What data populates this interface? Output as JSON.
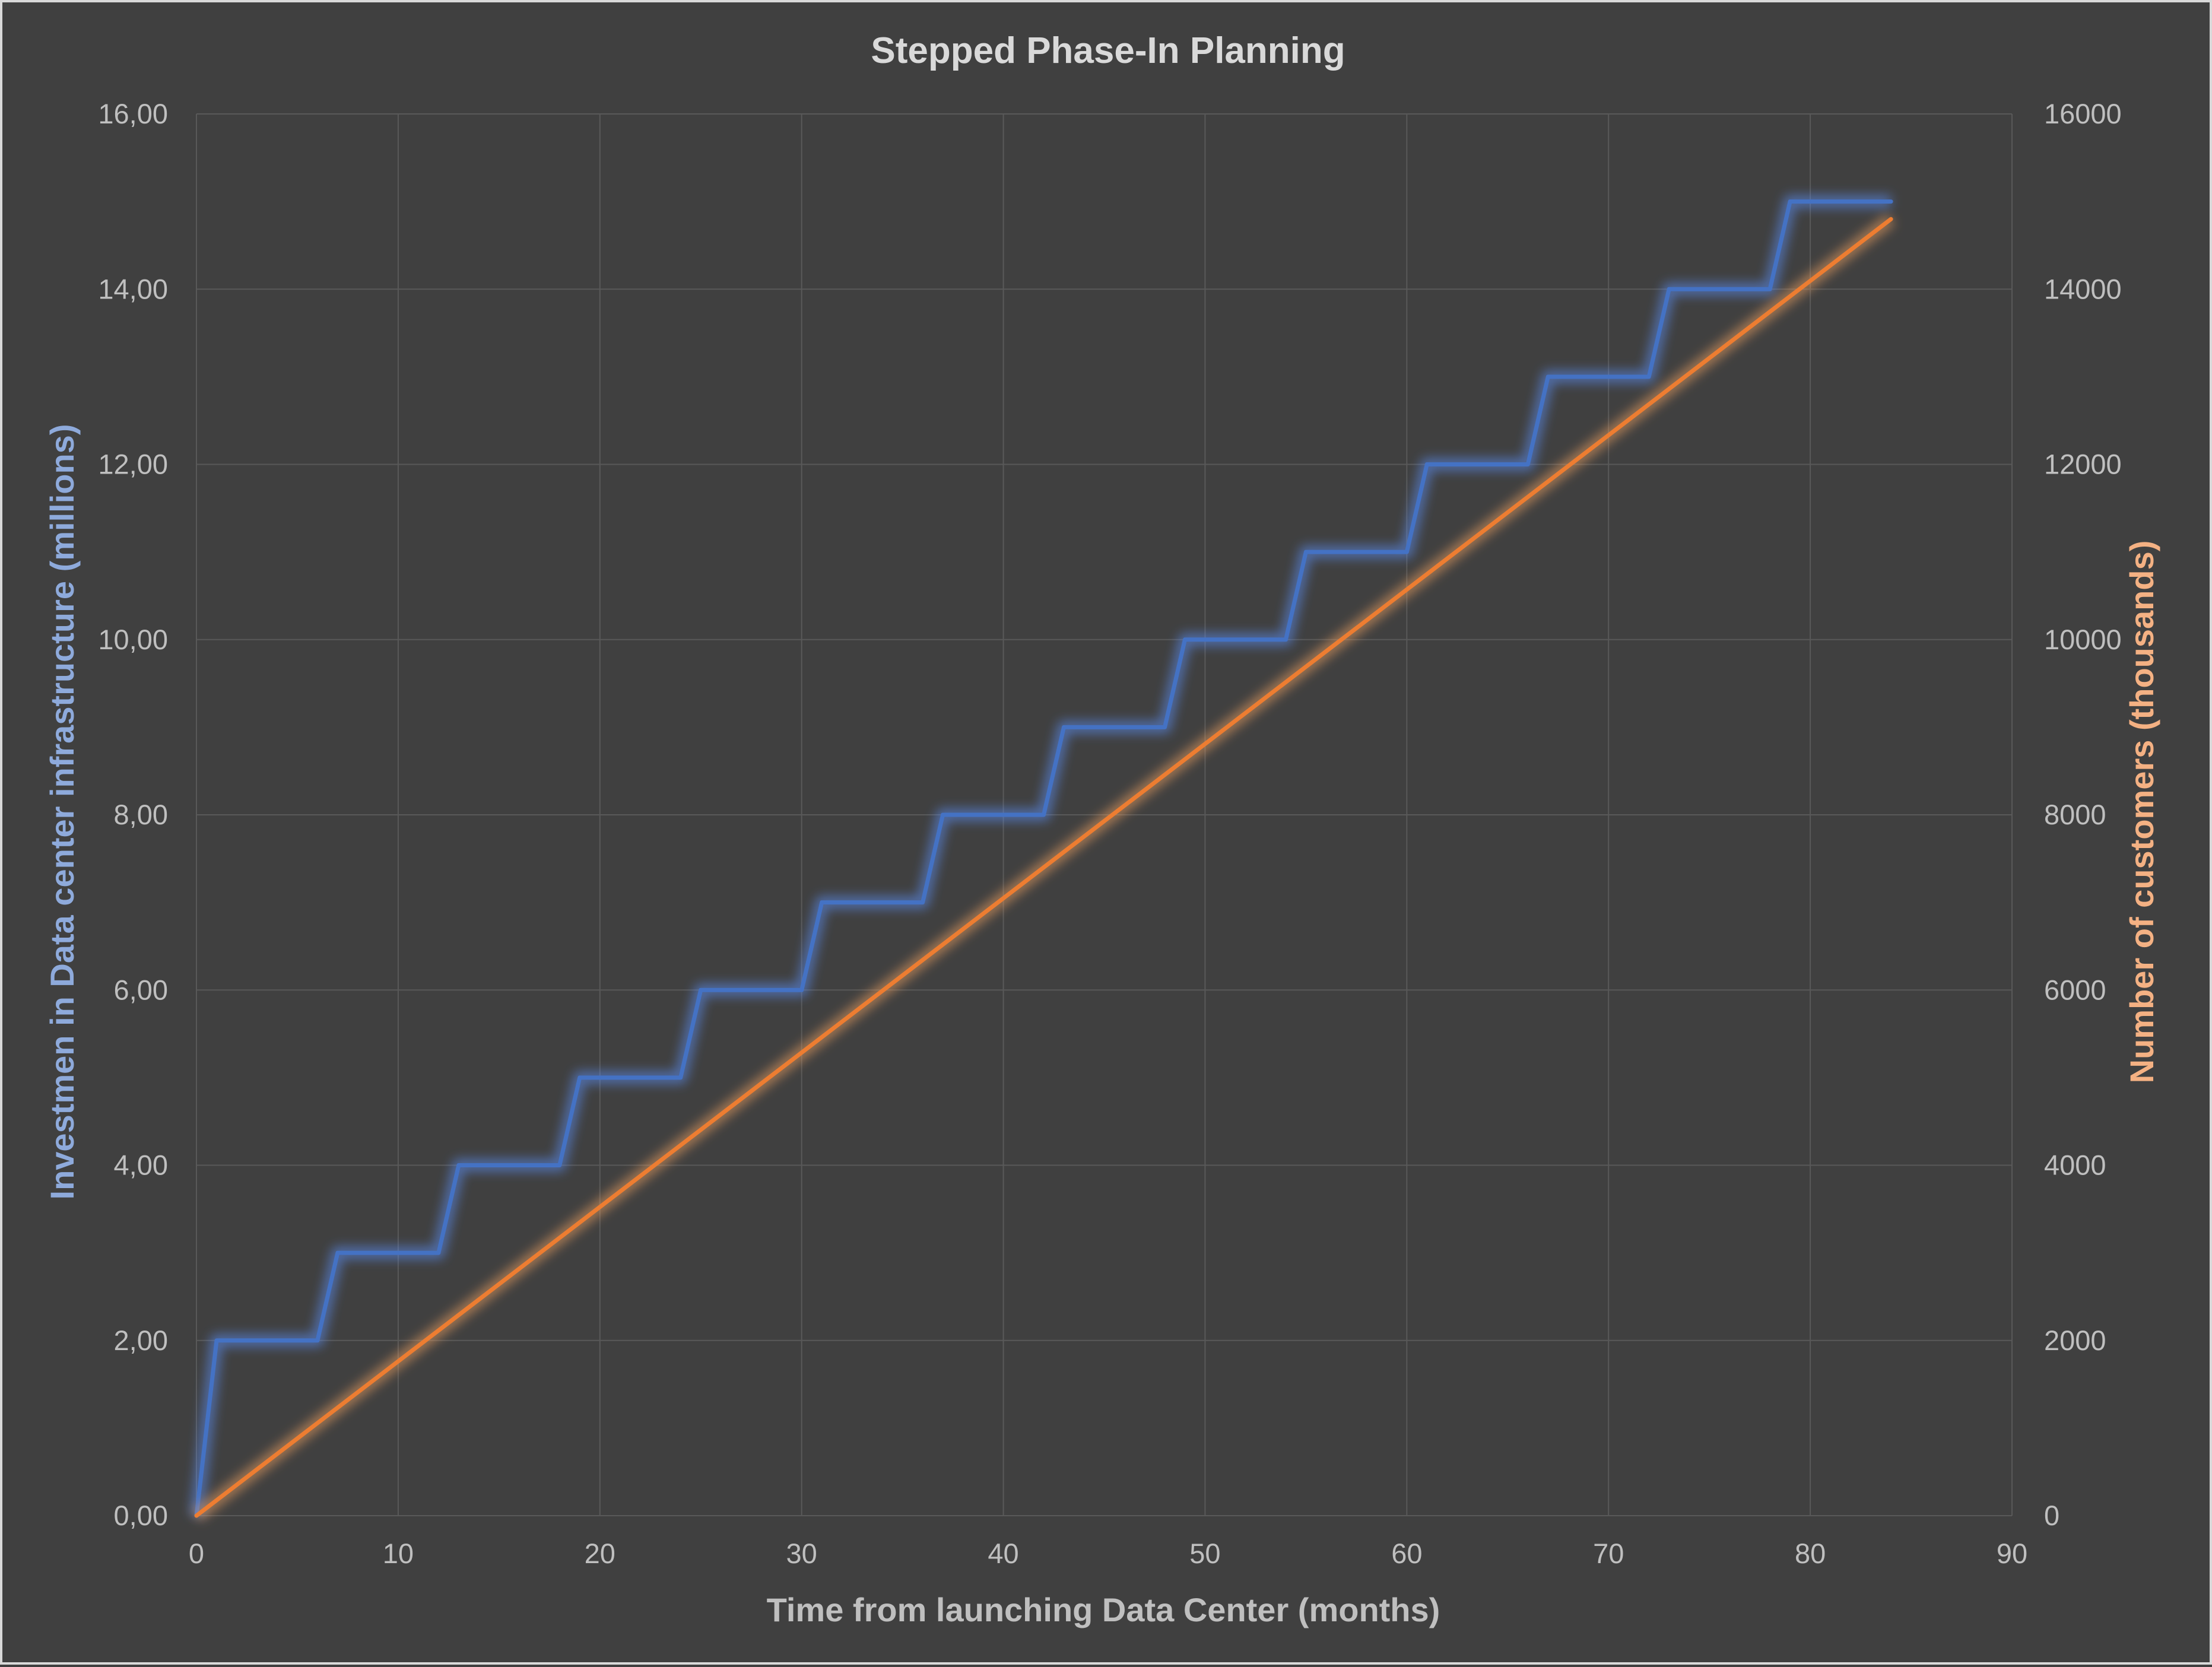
{
  "colors": {
    "background": "#404040",
    "gridline": "#595959",
    "title": "#d9d9d9",
    "tick": "#bfbfbf",
    "x_title": "#bfbfbf",
    "left_title": "#8eaadb",
    "right_title": "#f4b183"
  },
  "chart_data": {
    "type": "line",
    "title": "Stepped Phase-In Planning",
    "xlabel": "Time from launching Data Center (months)",
    "ylabel": "Investmen in Data center infrastructure (millions)",
    "y2label": "Number of customers (thousands)",
    "xlim": [
      0,
      90
    ],
    "ylim": [
      0,
      16
    ],
    "y2lim": [
      0,
      16000
    ],
    "x_ticks": [
      "0",
      "10",
      "20",
      "30",
      "40",
      "50",
      "60",
      "70",
      "80",
      "90"
    ],
    "y_ticks": [
      "0,00",
      "2,00",
      "4,00",
      "6,00",
      "8,00",
      "10,00",
      "12,00",
      "14,00",
      "16,00"
    ],
    "y2_ticks": [
      "0",
      "2000",
      "4000",
      "6000",
      "8000",
      "10000",
      "12000",
      "14000",
      "16000"
    ],
    "grid": true,
    "legend": "none",
    "series": [
      {
        "axis": "left",
        "color": "#4472c4",
        "glow": "#5b8ff9",
        "points": [
          [
            0,
            0
          ],
          [
            1,
            2
          ],
          [
            6,
            2
          ],
          [
            7,
            3
          ],
          [
            12,
            3
          ],
          [
            13,
            4
          ],
          [
            18,
            4
          ],
          [
            19,
            5
          ],
          [
            24,
            5
          ],
          [
            25,
            6
          ],
          [
            30,
            6
          ],
          [
            31,
            7
          ],
          [
            36,
            7
          ],
          [
            37,
            8
          ],
          [
            42,
            8
          ],
          [
            43,
            9
          ],
          [
            48,
            9
          ],
          [
            49,
            10
          ],
          [
            54,
            10
          ],
          [
            55,
            11
          ],
          [
            60,
            11
          ],
          [
            61,
            12
          ],
          [
            66,
            12
          ],
          [
            67,
            13
          ],
          [
            72,
            13
          ],
          [
            73,
            14
          ],
          [
            78,
            14
          ],
          [
            79,
            15
          ],
          [
            84,
            15
          ]
        ]
      },
      {
        "axis": "right",
        "color": "#ed7d31",
        "glow": "#f4a460",
        "points": [
          [
            0,
            0
          ],
          [
            84,
            14800
          ]
        ]
      }
    ]
  }
}
